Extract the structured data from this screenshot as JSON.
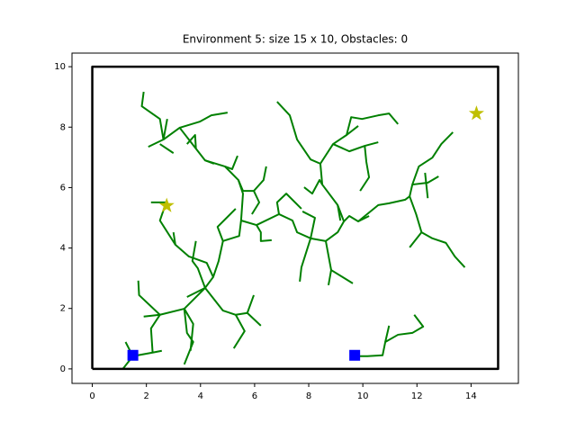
{
  "chart_data": {
    "type": "tree",
    "title": "Environment 5: size 15 x 10, Obstacles: 0",
    "xlim": [
      -0.75,
      15.75
    ],
    "ylim": [
      -0.48,
      10.45
    ],
    "xticks": [
      0,
      2,
      4,
      6,
      8,
      10,
      12,
      14
    ],
    "yticks": [
      0,
      2,
      4,
      6,
      8,
      10
    ],
    "boundary": {
      "color": "#000000",
      "x": [
        0,
        15,
        15,
        0,
        0
      ],
      "y": [
        0,
        0,
        10,
        10,
        0
      ]
    },
    "tree_color": "#008000",
    "branches": [
      {
        "x": [
          1.13,
          1.5,
          2.23,
          2.57
        ],
        "y": [
          0,
          0.42,
          0.54,
          0.6
        ]
      },
      {
        "x": [
          1.23,
          1.5
        ],
        "y": [
          0.89,
          0.42
        ]
      },
      {
        "x": [
          2.23,
          2.17,
          2.5,
          1.9
        ],
        "y": [
          0.54,
          1.34,
          1.79,
          1.73
        ]
      },
      {
        "x": [
          2.5,
          1.73,
          1.7
        ],
        "y": [
          1.79,
          2.44,
          2.92
        ]
      },
      {
        "x": [
          2.5,
          3.4,
          3.73,
          3.63
        ],
        "y": [
          1.79,
          1.99,
          1.49,
          0.6
        ]
      },
      {
        "x": [
          3.4,
          3.5,
          3.73,
          3.4
        ],
        "y": [
          1.99,
          1.19,
          0.89,
          0.15
        ]
      },
      {
        "x": [
          3.4,
          4.17,
          4.83,
          5.3,
          5.73,
          6.23
        ],
        "y": [
          1.99,
          2.68,
          1.93,
          1.79,
          1.85,
          1.43
        ]
      },
      {
        "x": [
          4.17,
          3.5
        ],
        "y": [
          2.68,
          2.38
        ]
      },
      {
        "x": [
          4.17,
          3.9,
          3.7,
          3.83
        ],
        "y": [
          2.68,
          3.33,
          3.57,
          4.23
        ]
      },
      {
        "x": [
          4.17,
          4.47,
          4.23,
          3.57,
          3.07,
          3.0
        ],
        "y": [
          2.68,
          3.04,
          3.51,
          3.72,
          4.11,
          4.52
        ]
      },
      {
        "x": [
          4.47,
          4.67,
          4.83,
          4.63,
          5.3
        ],
        "y": [
          3.04,
          3.57,
          4.23,
          4.7,
          5.3
        ]
      },
      {
        "x": [
          4.83,
          5.43,
          5.5,
          5.57,
          5.4,
          4.9,
          4.17,
          3.83,
          3.23,
          2.63,
          2.07
        ],
        "y": [
          4.23,
          4.4,
          4.91,
          5.8,
          6.25,
          6.7,
          6.9,
          7.29,
          7.98,
          7.59,
          7.35
        ]
      },
      {
        "x": [
          2.63,
          2.5,
          1.83,
          1.9
        ],
        "y": [
          7.59,
          8.27,
          8.69,
          9.17
        ]
      },
      {
        "x": [
          2.5,
          3.0
        ],
        "y": [
          7.44,
          7.14
        ]
      },
      {
        "x": [
          2.63,
          2.77
        ],
        "y": [
          7.59,
          8.27
        ]
      },
      {
        "x": [
          3.83,
          3.8,
          3.5
        ],
        "y": [
          7.29,
          7.74,
          7.44
        ]
      },
      {
        "x": [
          3.23,
          3.97,
          4.4,
          5.0
        ],
        "y": [
          7.98,
          8.18,
          8.39,
          8.48
        ]
      },
      {
        "x": [
          4.9,
          5.17,
          5.37
        ],
        "y": [
          6.7,
          6.61,
          7.05
        ]
      },
      {
        "x": [
          4.17,
          4.5
        ],
        "y": [
          6.9,
          6.79
        ]
      },
      {
        "x": [
          5.4,
          5.57,
          5.97,
          6.33,
          6.43
        ],
        "y": [
          6.25,
          5.89,
          5.89,
          6.25,
          6.7
        ]
      },
      {
        "x": [
          5.97,
          6.17,
          5.9
        ],
        "y": [
          5.89,
          5.51,
          5.12
        ]
      },
      {
        "x": [
          5.5,
          6.07,
          6.23,
          6.23,
          6.63
        ],
        "y": [
          4.91,
          4.76,
          4.52,
          4.23,
          4.26
        ]
      },
      {
        "x": [
          6.07,
          6.9,
          7.4,
          7.57,
          8.07,
          8.63,
          9.07,
          9.3,
          9.5,
          9.83,
          10.23
        ],
        "y": [
          4.76,
          5.12,
          4.91,
          4.52,
          4.32,
          4.23,
          4.52,
          4.88,
          5.06,
          4.88,
          5.06
        ]
      },
      {
        "x": [
          6.9,
          6.83,
          7.17,
          7.73
        ],
        "y": [
          5.12,
          5.51,
          5.8,
          5.3
        ]
      },
      {
        "x": [
          8.07,
          7.73,
          7.67
        ],
        "y": [
          4.32,
          3.36,
          2.89
        ]
      },
      {
        "x": [
          8.07,
          8.23,
          7.77
        ],
        "y": [
          4.32,
          5.0,
          5.21
        ]
      },
      {
        "x": [
          8.63,
          8.83,
          8.73
        ],
        "y": [
          4.23,
          3.27,
          2.77
        ]
      },
      {
        "x": [
          8.83,
          9.63
        ],
        "y": [
          3.27,
          2.83
        ]
      },
      {
        "x": [
          9.3,
          9.07,
          9.17
        ],
        "y": [
          4.88,
          5.42,
          4.91
        ]
      },
      {
        "x": [
          9.07,
          8.5,
          8.4,
          8.13,
          7.83
        ],
        "y": [
          5.42,
          6.1,
          6.25,
          5.8,
          6.01
        ]
      },
      {
        "x": [
          8.5,
          8.43,
          8.07,
          7.57,
          7.3,
          6.83
        ],
        "y": [
          6.1,
          6.79,
          6.93,
          7.59,
          8.39,
          8.84
        ]
      },
      {
        "x": [
          8.43,
          8.9,
          9.4,
          9.57,
          9.97,
          10.57,
          10.97,
          11.3
        ],
        "y": [
          6.79,
          7.44,
          7.74,
          8.33,
          8.27,
          8.39,
          8.45,
          8.1
        ]
      },
      {
        "x": [
          8.9,
          9.5,
          10.07,
          10.57
        ],
        "y": [
          7.44,
          7.2,
          7.38,
          7.5
        ]
      },
      {
        "x": [
          9.4,
          9.83
        ],
        "y": [
          7.74,
          8.04
        ]
      },
      {
        "x": [
          10.07,
          10.13,
          10.23,
          9.9
        ],
        "y": [
          7.38,
          6.85,
          6.34,
          5.89
        ]
      },
      {
        "x": [
          9.83,
          10.57,
          10.97,
          11.57,
          11.73,
          11.83,
          12.07,
          12.57,
          12.9,
          13.33
        ],
        "y": [
          4.88,
          5.42,
          5.48,
          5.6,
          5.71,
          6.1,
          6.7,
          6.99,
          7.44,
          7.83
        ]
      },
      {
        "x": [
          11.73,
          11.97,
          12.17,
          12.57,
          13.07,
          13.4,
          13.77
        ],
        "y": [
          5.71,
          5.12,
          4.52,
          4.32,
          4.17,
          3.72,
          3.36
        ]
      },
      {
        "x": [
          12.17,
          11.73
        ],
        "y": [
          4.52,
          4.02
        ]
      },
      {
        "x": [
          11.83,
          12.4,
          12.8
        ],
        "y": [
          6.1,
          6.16,
          6.37
        ]
      },
      {
        "x": [
          12.3,
          12.4
        ],
        "y": [
          6.49,
          5.65
        ]
      },
      {
        "x": [
          9.73,
          10.17,
          10.73,
          10.83,
          11.3,
          11.83,
          12.23,
          11.9
        ],
        "y": [
          0.42,
          0.42,
          0.45,
          0.89,
          1.13,
          1.19,
          1.4,
          1.79
        ]
      },
      {
        "x": [
          10.83,
          10.97
        ],
        "y": [
          0.89,
          1.43
        ]
      },
      {
        "x": [
          5.3,
          5.63,
          5.23
        ],
        "y": [
          1.79,
          1.25,
          0.68
        ]
      },
      {
        "x": [
          5.73,
          5.97
        ],
        "y": [
          1.85,
          2.44
        ]
      },
      {
        "x": [
          3.07,
          2.5,
          2.73,
          2.17
        ],
        "y": [
          4.11,
          4.91,
          5.51,
          5.51
        ]
      }
    ],
    "starts": {
      "color": "#0000ff",
      "x": [
        1.5,
        9.7
      ],
      "y": [
        0.45,
        0.45
      ]
    },
    "goals": {
      "color": "#bfbf00",
      "x": [
        2.75,
        14.2
      ],
      "y": [
        5.4,
        8.45
      ]
    }
  }
}
